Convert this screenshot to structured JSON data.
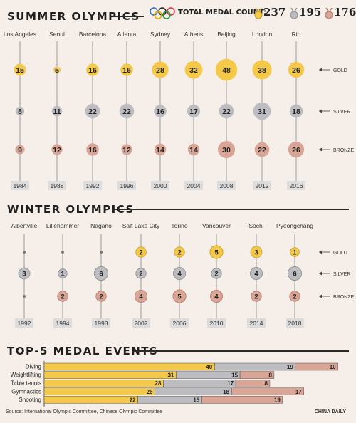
{
  "header": {
    "summer_title": "SUMMER OLYMPICS",
    "winter_title": "WINTER OLYMPICS",
    "events_title": "TOP-5 MEDAL EVENTS",
    "total_label": "TOTAL MEDAL COUNT:",
    "total_gold": "237",
    "total_silver": "195",
    "total_bronze": "176"
  },
  "colors": {
    "gold": "#f4c94a",
    "silver": "#bdbdc1",
    "bronze": "#d9a596",
    "stem": "#9a9a9a",
    "background": "#f6efe9"
  },
  "chart_data": [
    {
      "type": "bubble",
      "title": "SUMMER OLYMPICS",
      "categories": [
        "Los Angeles",
        "Seoul",
        "Barcelona",
        "Atlanta",
        "Sydney",
        "Athens",
        "Beijing",
        "London",
        "Rio"
      ],
      "years": [
        "1984",
        "1988",
        "1992",
        "1996",
        "2000",
        "2004",
        "2008",
        "2012",
        "2016"
      ],
      "series": [
        {
          "name": "GOLD",
          "values": [
            15,
            5,
            16,
            16,
            28,
            32,
            48,
            38,
            26
          ]
        },
        {
          "name": "SILVER",
          "values": [
            8,
            11,
            22,
            22,
            16,
            17,
            22,
            31,
            18
          ]
        },
        {
          "name": "BRONZE",
          "values": [
            9,
            12,
            16,
            12,
            14,
            14,
            30,
            22,
            26
          ]
        }
      ]
    },
    {
      "type": "bubble",
      "title": "WINTER OLYMPICS",
      "categories": [
        "Albertville",
        "Lillehammer",
        "Nagano",
        "Salt Lake City",
        "Torino",
        "Vancouver",
        "Sochi",
        "Pyeongchang"
      ],
      "years": [
        "1992",
        "1994",
        "1998",
        "2002",
        "2006",
        "2010",
        "2014",
        "2018"
      ],
      "series": [
        {
          "name": "GOLD",
          "values": [
            0,
            0,
            0,
            2,
            2,
            5,
            3,
            1
          ]
        },
        {
          "name": "SILVER",
          "values": [
            3,
            1,
            6,
            2,
            4,
            2,
            4,
            6
          ]
        },
        {
          "name": "BRONZE",
          "values": [
            0,
            2,
            2,
            4,
            5,
            4,
            2,
            2
          ]
        }
      ]
    },
    {
      "type": "bar",
      "stacked": true,
      "orientation": "horizontal",
      "title": "TOP-5 MEDAL EVENTS",
      "categories": [
        "Diving",
        "Weightlifting",
        "Table tennis",
        "Gymnastics",
        "Shooting"
      ],
      "series": [
        {
          "name": "GOLD",
          "values": [
            40,
            31,
            28,
            26,
            22
          ]
        },
        {
          "name": "SILVER",
          "values": [
            19,
            15,
            17,
            18,
            15
          ]
        },
        {
          "name": "BRONZE",
          "values": [
            10,
            8,
            8,
            17,
            19
          ]
        }
      ]
    }
  ],
  "footer": {
    "source": "Source: International Olympic Committee, Chinese Olympic Committee",
    "credit": "CHINA DAILY"
  }
}
